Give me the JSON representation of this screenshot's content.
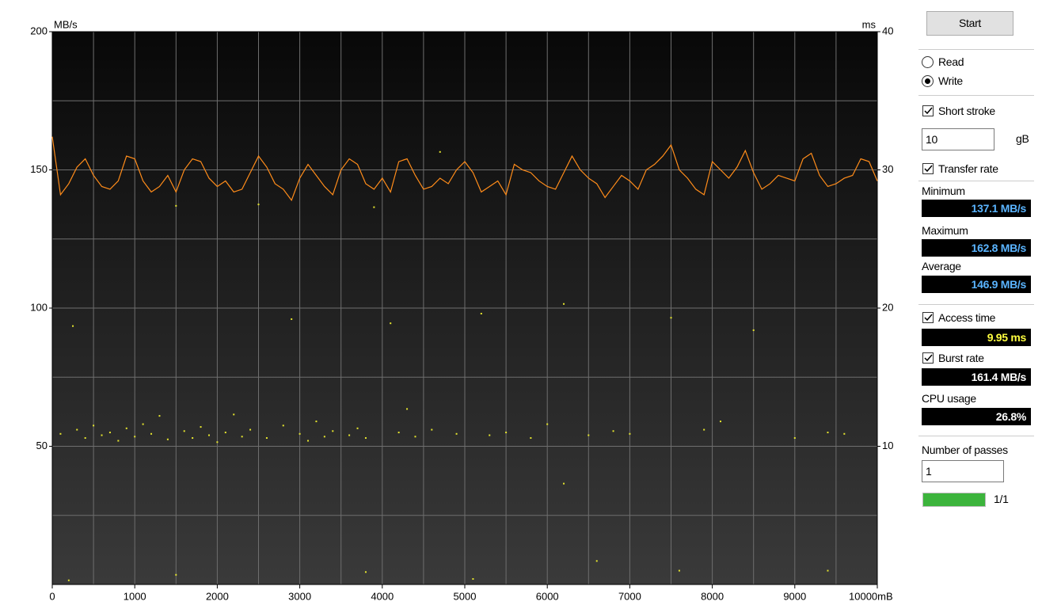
{
  "chart_data": {
    "type": "line",
    "y_label": "MB/s",
    "y2_label": "ms",
    "xlim": [
      0,
      10000
    ],
    "ylim": [
      0,
      200
    ],
    "y2lim": [
      0,
      40
    ],
    "xticks": [
      0,
      1000,
      2000,
      3000,
      4000,
      5000,
      6000,
      7000,
      8000,
      9000,
      {
        "value": 10000,
        "label": "10000mB"
      }
    ],
    "yticks": [
      50,
      100,
      150,
      200
    ],
    "y2ticks": [
      10,
      20,
      30,
      40
    ],
    "x_gridlines": [
      500,
      1000,
      1500,
      2000,
      2500,
      3000,
      3500,
      4000,
      4500,
      5000,
      5500,
      6000,
      6500,
      7000,
      7500,
      8000,
      8500,
      9000,
      9500
    ],
    "y_gridlines": [
      25,
      50,
      75,
      100,
      125,
      150,
      175
    ],
    "grid": true,
    "series": [
      {
        "type": "line",
        "color": "#ff8c1a",
        "x": [
          0,
          100,
          200,
          300,
          400,
          500,
          600,
          700,
          800,
          900,
          1000,
          1100,
          1200,
          1300,
          1400,
          1500,
          1600,
          1700,
          1800,
          1900,
          2000,
          2100,
          2200,
          2300,
          2400,
          2500,
          2600,
          2700,
          2800,
          2900,
          3000,
          3100,
          3200,
          3300,
          3400,
          3500,
          3600,
          3700,
          3800,
          3900,
          4000,
          4100,
          4200,
          4300,
          4400,
          4500,
          4600,
          4700,
          4800,
          4900,
          5000,
          5100,
          5200,
          5300,
          5400,
          5500,
          5600,
          5700,
          5800,
          5900,
          6000,
          6100,
          6200,
          6300,
          6400,
          6500,
          6600,
          6700,
          6800,
          6900,
          7000,
          7100,
          7200,
          7300,
          7400,
          7500,
          7600,
          7700,
          7800,
          7900,
          8000,
          8100,
          8200,
          8300,
          8400,
          8500,
          8600,
          8700,
          8800,
          8900,
          9000,
          9100,
          9200,
          9300,
          9400,
          9500,
          9600,
          9700,
          9800,
          9900,
          10000
        ],
        "values": [
          162,
          141,
          145,
          151,
          154,
          148,
          144,
          143,
          146,
          155,
          154,
          146,
          142,
          144,
          148,
          142,
          150,
          154,
          153,
          147,
          144,
          146,
          142,
          143,
          149,
          155,
          151,
          145,
          143,
          139,
          147,
          152,
          148,
          144,
          141,
          150,
          154,
          152,
          145,
          143,
          147,
          142,
          153,
          154,
          148,
          143,
          144,
          147,
          145,
          150,
          153,
          149,
          142,
          144,
          146,
          141,
          152,
          150,
          149,
          146,
          144,
          143,
          149,
          155,
          150,
          147,
          145,
          140,
          144,
          148,
          146,
          143,
          150,
          152,
          155,
          159,
          150,
          147,
          143,
          141,
          153,
          150,
          147,
          151,
          157,
          149,
          143,
          145,
          148,
          147,
          146,
          154,
          156,
          148,
          144,
          145,
          147,
          148,
          154,
          153,
          146
        ]
      },
      {
        "type": "scatter",
        "color": "#e6e62e",
        "axis": "y2",
        "x": [
          100,
          250,
          300,
          400,
          500,
          600,
          700,
          800,
          900,
          1000,
          1100,
          1200,
          1300,
          1400,
          1500,
          1600,
          1700,
          1800,
          1900,
          2000,
          2100,
          2200,
          2300,
          2400,
          2500,
          2600,
          2800,
          2900,
          3000,
          3100,
          3200,
          3300,
          3400,
          3600,
          3700,
          3800,
          3900,
          4100,
          4200,
          4300,
          4400,
          4600,
          4700,
          4900,
          5200,
          5300,
          5500,
          5800,
          6000,
          6200,
          6200,
          6500,
          6800,
          7000,
          7500,
          7900,
          8100,
          8500,
          9000,
          9400,
          9600,
          200,
          1500,
          3800,
          5100,
          6600,
          7600,
          9400
        ],
        "values": [
          10.9,
          18.7,
          11.2,
          10.6,
          11.5,
          10.8,
          11.0,
          10.4,
          11.3,
          10.7,
          11.6,
          10.9,
          12.2,
          10.5,
          27.4,
          11.1,
          10.6,
          11.4,
          10.8,
          10.3,
          11.0,
          12.3,
          10.7,
          11.2,
          27.5,
          10.6,
          11.5,
          19.2,
          10.9,
          10.4,
          11.8,
          10.7,
          11.1,
          10.8,
          11.3,
          10.6,
          27.3,
          18.9,
          11.0,
          12.7,
          10.7,
          11.2,
          31.3,
          10.9,
          19.6,
          10.8,
          11.0,
          10.6,
          11.6,
          20.3,
          7.3,
          10.8,
          11.1,
          10.9,
          19.3,
          11.2,
          11.8,
          18.4,
          10.6,
          11.0,
          10.9,
          0.3,
          0.7,
          0.9,
          0.4,
          1.7,
          1.0,
          1.0
        ]
      }
    ]
  },
  "panel": {
    "start": "Start",
    "read": {
      "label": "Read",
      "checked": false
    },
    "write": {
      "label": "Write",
      "checked": true
    },
    "short_stroke": {
      "label": "Short stroke",
      "checked": true,
      "value": "10",
      "unit": "gB"
    },
    "transfer_rate": {
      "label": "Transfer rate",
      "checked": true
    },
    "minimum": {
      "label": "Minimum",
      "value": "137.1 MB/s"
    },
    "maximum": {
      "label": "Maximum",
      "value": "162.8 MB/s"
    },
    "average": {
      "label": "Average",
      "value": "146.9 MB/s"
    },
    "access_time": {
      "label": "Access time",
      "checked": true,
      "value": "9.95 ms"
    },
    "burst_rate": {
      "label": "Burst rate",
      "checked": true,
      "value": "161.4 MB/s"
    },
    "cpu_usage": {
      "label": "CPU usage",
      "value": "26.8%"
    },
    "passes": {
      "label": "Number of passes",
      "value": "1",
      "progress": "1/1"
    }
  }
}
